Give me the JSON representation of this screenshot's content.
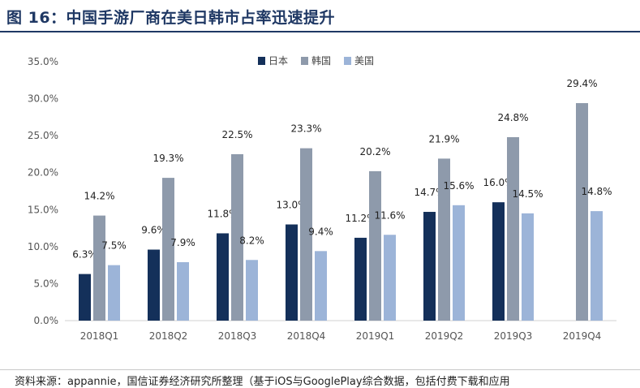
{
  "header": {
    "title": "图 16：中国手游厂商在美日韩市占率迅速提升"
  },
  "source": {
    "text": "资料来源：appannie，国信证券经济研究所整理（基于iOS与GooglePlay综合数据，包括付费下载和应用"
  },
  "colors": {
    "japan": "#14305a",
    "korea": "#8e9aab",
    "usa": "#9cb4d8",
    "axis_text": "#555555",
    "header_rule": "#1f3864"
  },
  "chart_data": {
    "type": "bar",
    "title": "",
    "xlabel": "",
    "ylabel": "",
    "categories": [
      "2018Q1",
      "2018Q2",
      "2018Q3",
      "2018Q4",
      "2019Q1",
      "2019Q2",
      "2019Q3",
      "2019Q4"
    ],
    "ylim": [
      0,
      35
    ],
    "yticks": [
      0,
      5,
      10,
      15,
      20,
      25,
      30,
      35
    ],
    "ytick_labels": [
      "0.0%",
      "5.0%",
      "10.0%",
      "15.0%",
      "20.0%",
      "25.0%",
      "30.0%",
      "35.0%"
    ],
    "grid": false,
    "legend_position": "top-center",
    "series": [
      {
        "name": "日本",
        "color": "#14305a",
        "values": [
          6.3,
          9.6,
          11.8,
          13.0,
          11.2,
          14.7,
          16.0,
          null
        ],
        "labels": [
          "6.3%",
          "9.6%",
          "11.8%",
          "13.0%",
          "11.2%",
          "14.7%",
          "16.0%",
          ""
        ]
      },
      {
        "name": "韩国",
        "color": "#8e9aab",
        "values": [
          14.2,
          19.3,
          22.5,
          23.3,
          20.2,
          21.9,
          24.8,
          29.4
        ],
        "labels": [
          "14.2%",
          "19.3%",
          "22.5%",
          "23.3%",
          "20.2%",
          "21.9%",
          "24.8%",
          "29.4%"
        ]
      },
      {
        "name": "美国",
        "color": "#9cb4d8",
        "values": [
          7.5,
          7.9,
          8.2,
          9.4,
          11.6,
          15.6,
          14.5,
          14.8
        ],
        "labels": [
          "7.5%",
          "7.9%",
          "8.2%",
          "9.4%",
          "11.6%",
          "15.6%",
          "14.5%",
          "14.8%"
        ]
      }
    ]
  }
}
